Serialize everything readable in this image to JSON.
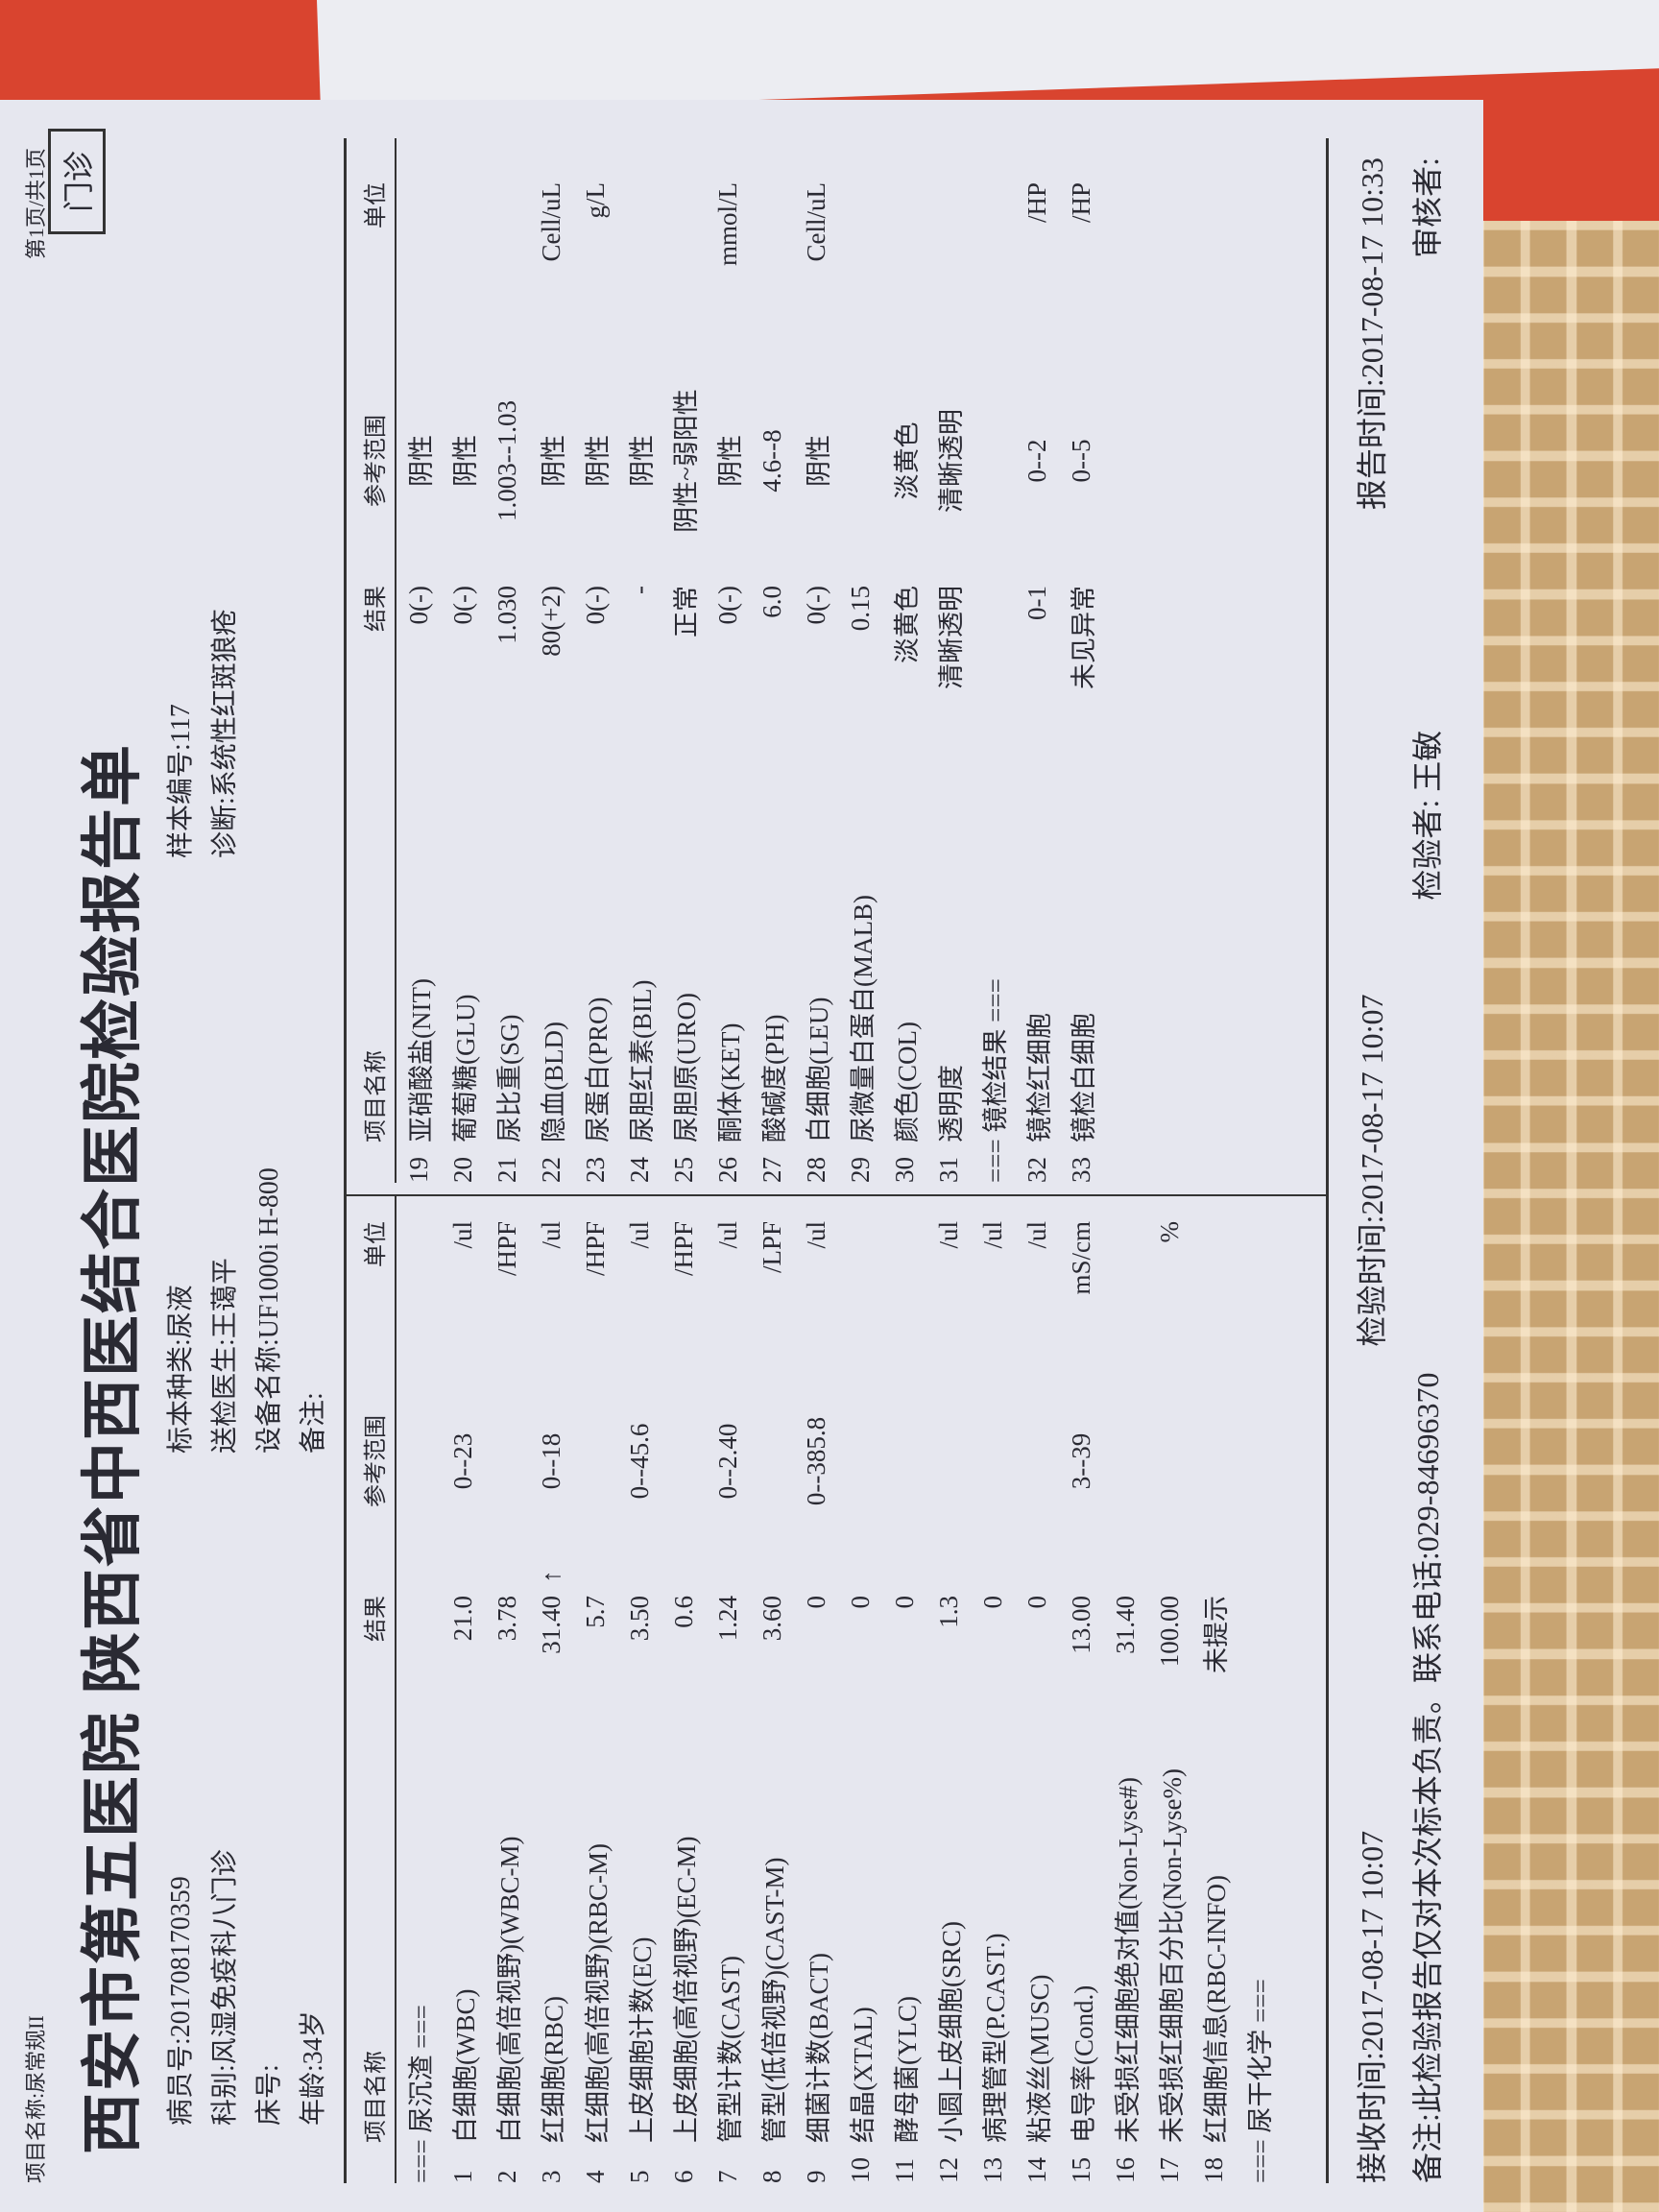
{
  "header": {
    "top_note": "项目名称:尿常规II",
    "page": "第1页/共1页",
    "visit_type": "门诊",
    "title": "西安市第五医院  陕西省中西医结合医院检验报告单"
  },
  "info": {
    "patient_id": "病员号:201708170359",
    "department": "科别:风湿免疫科八门诊",
    "bed": "床号:",
    "age": "年龄:34岁",
    "remark": "备注:",
    "specimen": "标本种类:尿液",
    "doctor": "送检医生:王蔼平",
    "device": "设备名称:UF1000i H-800",
    "sample_no": "样本编号:117",
    "diagnosis": "诊断:系统性红斑狼疮"
  },
  "columns_left": [
    "项目名称",
    "结果",
    "参考范围",
    "单位"
  ],
  "columns_right": [
    "项目名称",
    "结果",
    "参考范围",
    "单位"
  ],
  "left_table": [
    {
      "section": "=== 尿沉渣 ==="
    },
    {
      "no": "1",
      "name": "白细胞(WBC)",
      "result": "21.0",
      "range": "0--23",
      "unit": "/ul"
    },
    {
      "no": "2",
      "name": "白细胞(高倍视野)(WBC-M)",
      "result": "3.78",
      "unit": "/HPF"
    },
    {
      "no": "3",
      "name": "红细胞(RBC)",
      "result": "31.40",
      "flag": "↑",
      "range": "0--18",
      "unit": "/ul"
    },
    {
      "no": "4",
      "name": "红细胞(高倍视野)(RBC-M)",
      "result": "5.7",
      "unit": "/HPF"
    },
    {
      "no": "5",
      "name": "上皮细胞计数(EC)",
      "result": "3.50",
      "range": "0--45.6",
      "unit": "/ul"
    },
    {
      "no": "6",
      "name": "上皮细胞(高倍视野)(EC-M)",
      "result": "0.6",
      "unit": "/HPF"
    },
    {
      "no": "7",
      "name": "管型计数(CAST)",
      "result": "1.24",
      "range": "0--2.40",
      "unit": "/ul"
    },
    {
      "no": "8",
      "name": "管型(低倍视野)(CAST-M)",
      "result": "3.60",
      "unit": "/LPF"
    },
    {
      "no": "9",
      "name": "细菌计数(BACT)",
      "result": "0",
      "range": "0--385.8",
      "unit": "/ul"
    },
    {
      "no": "10",
      "name": "结晶(XTAL)",
      "result": "0"
    },
    {
      "no": "11",
      "name": "酵母菌(YLC)",
      "result": "0"
    },
    {
      "no": "12",
      "name": "小圆上皮细胞(SRC)",
      "result": "1.3",
      "unit": "/ul"
    },
    {
      "no": "13",
      "name": "病理管型(P.CAST.)",
      "result": "0",
      "unit": "/ul"
    },
    {
      "no": "14",
      "name": "粘液丝(MUSC)",
      "result": "0",
      "unit": "/ul"
    },
    {
      "no": "15",
      "name": "电导率(Cond.)",
      "result": "13.00",
      "range": "3--39",
      "unit": "mS/cm"
    },
    {
      "no": "16",
      "name": "未受损红细胞绝对值(Non-Lyse#)",
      "result": "31.40"
    },
    {
      "no": "17",
      "name": "未受损红细胞百分比(Non-Lyse%)",
      "result": "100.00",
      "unit": "%"
    },
    {
      "no": "18",
      "name": "红细胞信息(RBC-INFO)",
      "result": "未提示"
    },
    {
      "section": "=== 尿干化学 ==="
    }
  ],
  "right_table": [
    {
      "no": "19",
      "name": "亚硝酸盐(NIT)",
      "result": "0(-)",
      "range": "阴性"
    },
    {
      "no": "20",
      "name": "葡萄糖(GLU)",
      "result": "0(-)",
      "range": "阴性"
    },
    {
      "no": "21",
      "name": "尿比重(SG)",
      "result": "1.030",
      "range": "1.003--1.03"
    },
    {
      "no": "22",
      "name": "隐血(BLD)",
      "result": "80(+2)",
      "range": "阴性",
      "unit": "Cell/uL"
    },
    {
      "no": "23",
      "name": "尿蛋白(PRO)",
      "result": "0(-)",
      "range": "阴性",
      "unit": "g/L"
    },
    {
      "no": "24",
      "name": "尿胆红素(BIL)",
      "result": "-",
      "range": "阴性"
    },
    {
      "no": "25",
      "name": "尿胆原(URO)",
      "result": "正常",
      "range": "阴性~弱阳性"
    },
    {
      "no": "26",
      "name": "酮体(KET)",
      "result": "0(-)",
      "range": "阴性",
      "unit": "mmol/L"
    },
    {
      "no": "27",
      "name": "酸碱度(PH)",
      "result": "6.0",
      "range": "4.6--8"
    },
    {
      "no": "28",
      "name": "白细胞(LEU)",
      "result": "0(-)",
      "range": "阴性",
      "unit": "Cell/uL"
    },
    {
      "no": "29",
      "name": "尿微量白蛋白(MALB)",
      "result": "0.15"
    },
    {
      "no": "30",
      "name": "颜色(COL)",
      "result": "淡黄色",
      "range": "淡黄色"
    },
    {
      "no": "31",
      "name": "透明度",
      "result": "清晰透明",
      "range": "清晰透明"
    },
    {
      "section": "=== 镜检结果 ==="
    },
    {
      "no": "32",
      "name": "镜检红细胞",
      "result": "0-1",
      "range": "0--2",
      "unit": "/HP"
    },
    {
      "no": "33",
      "name": "镜检白细胞",
      "result": "未见异常",
      "range": "0--5",
      "unit": "/HP"
    }
  ],
  "footer": {
    "received": "接收时间:2017-08-17 10:07",
    "tested": "检验时间:2017-08-17 10:07",
    "reported": "报告时间:2017-08-17 10:33",
    "note": "备注:此检验报告仅对本次标本负责。联系电话:029-84696370",
    "tester": "检验者: 王敏",
    "reviewer": "审核者:"
  }
}
